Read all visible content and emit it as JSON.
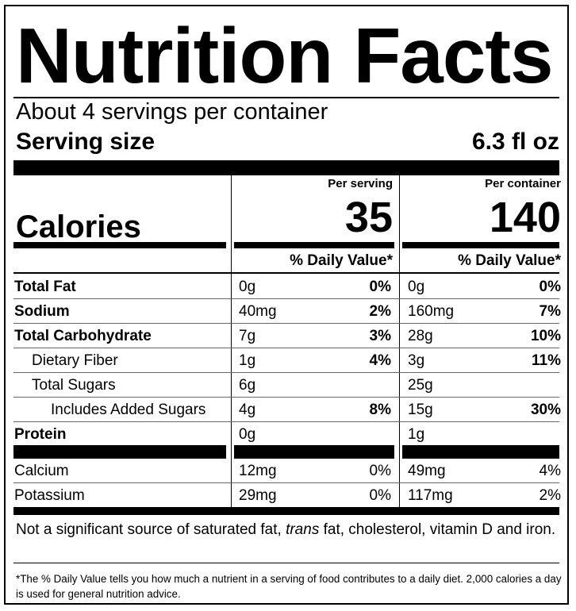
{
  "title": "Nutrition Facts",
  "servings_per_container": "About 4 servings per container",
  "serving_size": {
    "label": "Serving size",
    "value": "6.3 fl oz"
  },
  "calories": {
    "label": "Calories",
    "per_serving_header": "Per serving",
    "per_container_header": "Per container",
    "per_serving": "35",
    "per_container": "140"
  },
  "daily_value_header": "% Daily Value*",
  "nutrients": [
    {
      "name": "Total Fat",
      "bold": true,
      "indent": 0,
      "serving_amount": "0g",
      "serving_dv": "0%",
      "container_amount": "0g",
      "container_dv": "0%"
    },
    {
      "name": "Sodium",
      "bold": true,
      "indent": 0,
      "serving_amount": "40mg",
      "serving_dv": "2%",
      "container_amount": "160mg",
      "container_dv": "7%"
    },
    {
      "name": "Total Carbohydrate",
      "bold": true,
      "indent": 0,
      "serving_amount": "7g",
      "serving_dv": "3%",
      "container_amount": "28g",
      "container_dv": "10%"
    },
    {
      "name": "Dietary Fiber",
      "bold": false,
      "indent": 1,
      "serving_amount": "1g",
      "serving_dv": "4%",
      "container_amount": "3g",
      "container_dv": "11%"
    },
    {
      "name": "Total Sugars",
      "bold": false,
      "indent": 1,
      "serving_amount": "6g",
      "serving_dv": "",
      "container_amount": "25g",
      "container_dv": ""
    },
    {
      "name": "Includes Added Sugars",
      "bold": false,
      "indent": 2,
      "serving_amount": "4g",
      "serving_dv": "8%",
      "container_amount": "15g",
      "container_dv": "30%"
    },
    {
      "name": "Protein",
      "bold": true,
      "indent": 0,
      "serving_amount": "0g",
      "serving_dv": "",
      "container_amount": "1g",
      "container_dv": ""
    }
  ],
  "minerals": [
    {
      "name": "Calcium",
      "serving_amount": "12mg",
      "serving_dv": "0%",
      "container_amount": "49mg",
      "container_dv": "4%"
    },
    {
      "name": "Potassium",
      "serving_amount": "29mg",
      "serving_dv": "0%",
      "container_amount": "117mg",
      "container_dv": "2%"
    }
  ],
  "not_significant": {
    "before": "Not a significant source of saturated fat, ",
    "italic": "trans",
    "after": " fat, cholesterol, vitamin D and iron."
  },
  "footnote": "*The % Daily Value tells you how much a nutrient in a serving of food contributes to a daily diet. 2,000 calories a day is used for general nutrition advice."
}
